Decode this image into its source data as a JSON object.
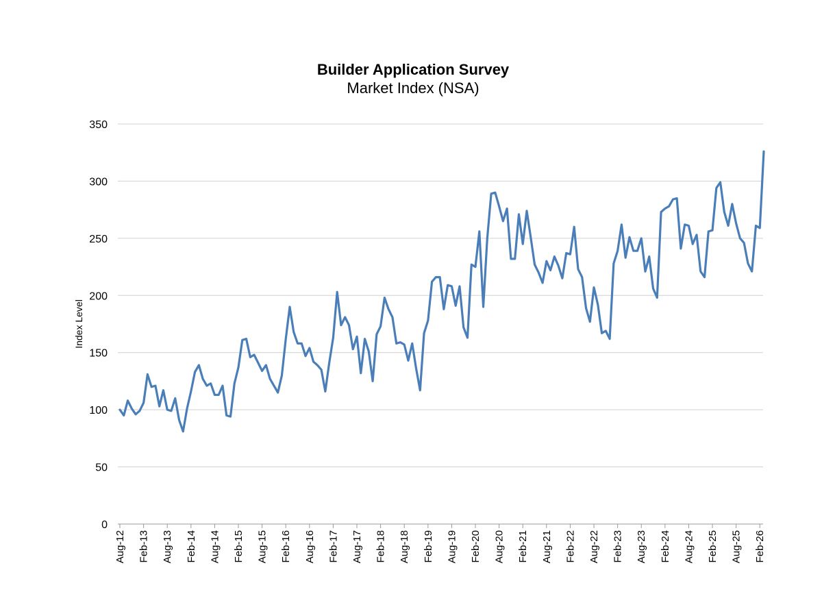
{
  "chart_data": {
    "type": "line",
    "title": "Builder Application Survey",
    "subtitle": "Market Index (NSA)",
    "xlabel": "",
    "ylabel": "Index Level",
    "ylim": [
      0,
      350
    ],
    "yticks": [
      0,
      50,
      100,
      150,
      200,
      250,
      300,
      350
    ],
    "grid": true,
    "legend": "none",
    "x_start": "Aug-12",
    "x_end": "Mar-26",
    "xticks": [
      "Aug-12",
      "Feb-13",
      "Aug-13",
      "Feb-14",
      "Aug-14",
      "Feb-15",
      "Aug-15",
      "Feb-16",
      "Aug-16",
      "Feb-17",
      "Aug-17",
      "Feb-18",
      "Aug-18",
      "Feb-19",
      "Aug-19",
      "Feb-20",
      "Aug-20",
      "Feb-21",
      "Aug-21",
      "Feb-22",
      "Aug-22",
      "Feb-23",
      "Aug-23",
      "Feb-24",
      "Aug-24",
      "Feb-25",
      "Aug-25",
      "Feb-26"
    ],
    "series": [
      {
        "color": "#4a7eb8",
        "values": [
          100,
          95,
          108,
          101,
          96,
          99,
          106,
          131,
          120,
          121,
          103,
          117,
          100,
          99,
          110,
          91,
          81,
          101,
          116,
          133,
          139,
          127,
          121,
          123,
          113,
          113,
          121,
          95,
          94,
          123,
          137,
          161,
          162,
          146,
          148,
          141,
          134,
          139,
          127,
          121,
          115,
          130,
          162,
          190,
          168,
          158,
          158,
          147,
          154,
          142,
          139,
          135,
          116,
          141,
          163,
          203,
          174,
          181,
          174,
          153,
          164,
          132,
          162,
          151,
          125,
          166,
          173,
          198,
          188,
          181,
          158,
          159,
          157,
          143,
          158,
          136,
          117,
          167,
          178,
          212,
          216,
          216,
          188,
          209,
          208,
          191,
          208,
          172,
          163,
          227,
          225,
          256,
          190,
          250,
          289,
          290,
          278,
          265,
          276,
          232,
          232,
          271,
          245,
          274,
          251,
          227,
          220,
          211,
          230,
          222,
          234,
          226,
          215,
          237,
          236,
          260,
          223,
          216,
          189,
          177,
          207,
          192,
          167,
          169,
          162,
          228,
          239,
          262,
          233,
          251,
          239,
          239,
          250,
          221,
          234,
          206,
          198,
          273,
          276,
          278,
          284,
          285,
          241,
          262,
          261,
          245,
          253,
          221,
          216,
          256,
          257,
          294,
          299,
          273,
          261,
          280,
          263,
          250,
          246,
          228,
          221,
          261,
          259,
          326
        ]
      }
    ]
  }
}
